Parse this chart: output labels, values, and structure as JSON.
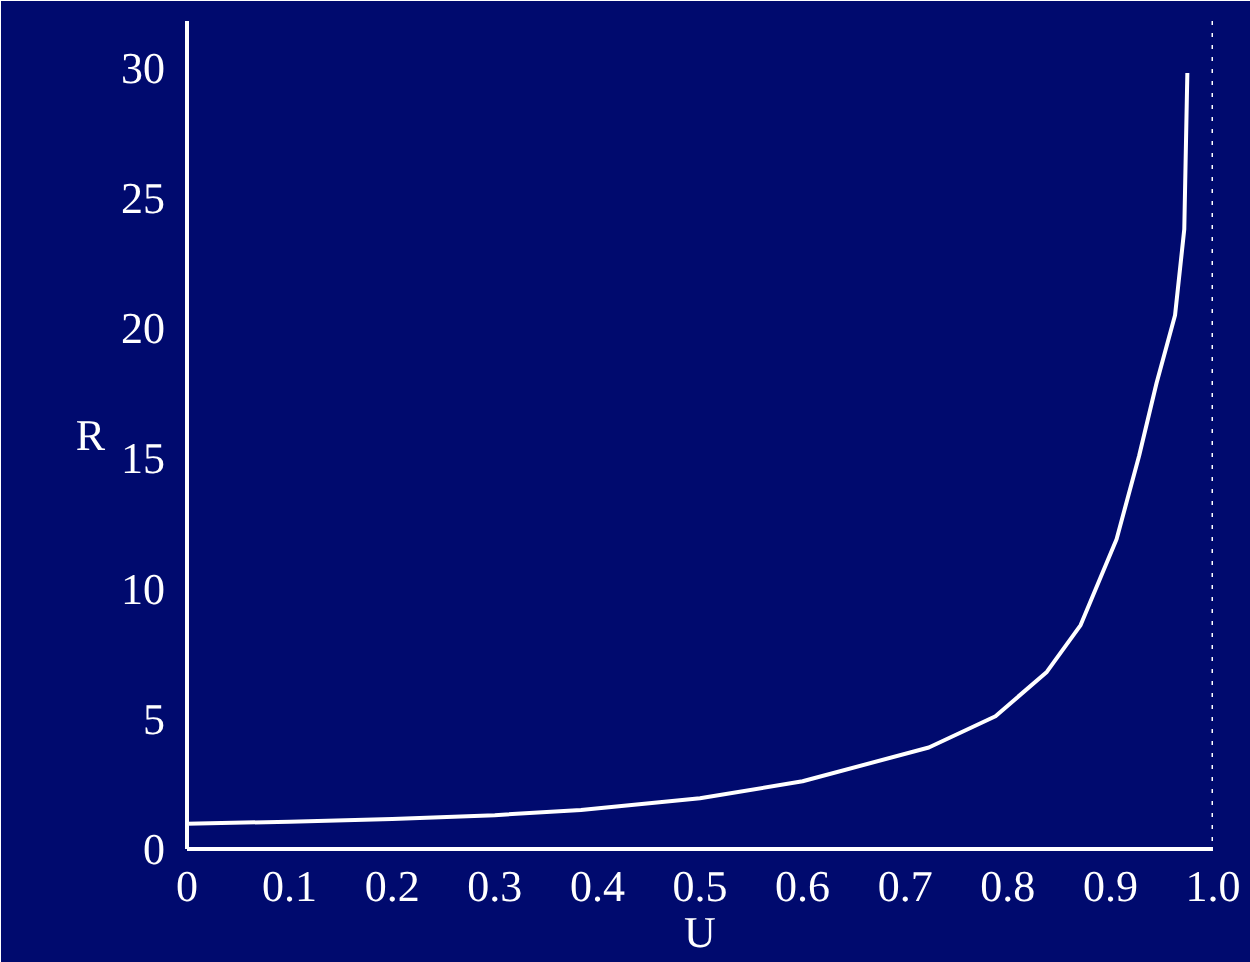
{
  "chart_data": {
    "type": "line",
    "xlabel": "U",
    "ylabel": "R",
    "x": [
      0,
      0.1,
      0.2,
      0.3,
      0.384,
      0.5,
      0.6,
      0.723,
      0.788,
      0.838,
      0.871,
      0.906,
      0.928,
      0.945,
      0.963,
      0.972,
      0.975
    ],
    "series": [
      {
        "color": "#ffffff",
        "values": [
          0.97,
          1.05,
          1.15,
          1.3,
          1.5,
          1.95,
          2.6,
          3.9,
          5.1,
          6.8,
          8.6,
          11.9,
          15.1,
          17.9,
          20.5,
          23.8,
          29.8
        ]
      }
    ],
    "xlim": [
      0,
      1.0
    ],
    "ylim": [
      0,
      31.8
    ],
    "xticks": [
      0,
      0.1,
      0.2,
      0.3,
      0.4,
      0.5,
      0.6,
      0.7,
      0.8,
      0.9,
      {
        "value": 1.0,
        "label": "1.0"
      }
    ],
    "yticks": [
      0,
      5,
      10,
      15,
      20,
      25,
      30
    ],
    "ref_lines": [
      {
        "axis": "x",
        "value": 1.0,
        "color": "#ffffff",
        "line_style": "dotted"
      }
    ],
    "grid": false,
    "line_style": "solid"
  }
}
